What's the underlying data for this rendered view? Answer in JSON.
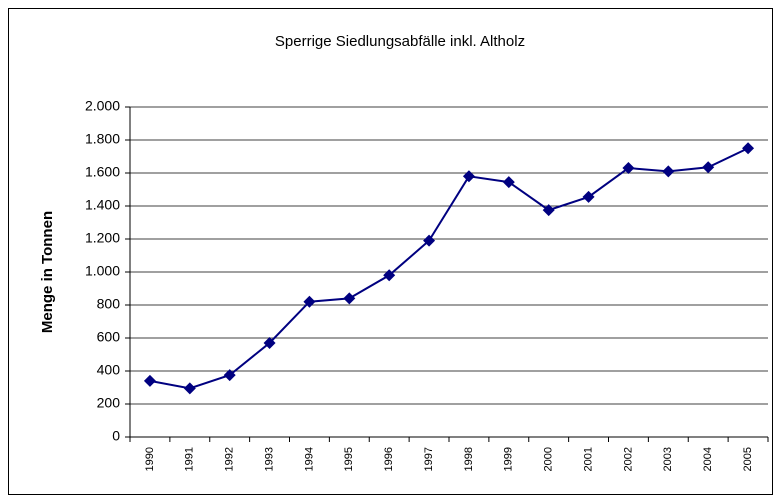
{
  "chart_data": {
    "type": "line",
    "title": "Sperrige Siedlungsabfälle inkl. Altholz",
    "y_label": "Menge in Tonnen",
    "categories": [
      "1990",
      "1991",
      "1992",
      "1993",
      "1994",
      "1995",
      "1996",
      "1997",
      "1998",
      "1999",
      "2000",
      "2001",
      "2002",
      "2003",
      "2004",
      "2005"
    ],
    "series": [
      {
        "name": "Sperrige Siedlungsabfälle",
        "color": "#000080",
        "values": [
          340,
          295,
          375,
          570,
          820,
          840,
          980,
          1190,
          1580,
          1545,
          1375,
          1455,
          1630,
          1610,
          1635,
          1750
        ]
      }
    ],
    "ylim": [
      0,
      2000
    ],
    "yticks": [
      0,
      200,
      400,
      600,
      800,
      {
        "value": 1000,
        "label": "1.000"
      },
      {
        "value": 1200,
        "label": "1.200"
      },
      {
        "value": 1400,
        "label": "1.400"
      },
      {
        "value": 1600,
        "label": "1.600"
      },
      {
        "value": 1800,
        "label": "1.800"
      },
      {
        "value": 2000,
        "label": "2.000"
      }
    ],
    "grid": true
  }
}
